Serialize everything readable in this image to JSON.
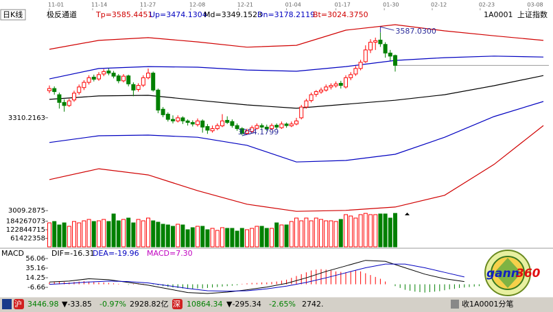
{
  "chart_data": {
    "type": "candlestick",
    "title": "日K线",
    "indicator": "极反通道",
    "indicator_values": [
      {
        "text": "Tp=3585.4451",
        "color": "#d00000"
      },
      {
        "text": "Up=3474.1304",
        "color": "#0000c0"
      },
      {
        "text": "Md=3349.1523",
        "color": "#000000"
      },
      {
        "text": "Dn=3178.2119",
        "color": "#0000c0"
      },
      {
        "text": "Bt=3024.3750",
        "color": "#d00000"
      }
    ],
    "symbol": "1A0001",
    "symbol_name": "上证指数",
    "xticks": [
      {
        "value": 0,
        "label": "11-01"
      },
      {
        "value": 8.75,
        "label": "11-14"
      },
      {
        "value": 18.6,
        "label": "11-27"
      },
      {
        "value": 28.6,
        "label": "12-08"
      },
      {
        "value": 38.3,
        "label": "12-21"
      },
      {
        "value": 48,
        "label": "01-04"
      },
      {
        "value": 58,
        "label": "01-17"
      },
      {
        "value": 67.8,
        "label": "01-30"
      },
      {
        "value": 77.5,
        "label": "02-12"
      },
      {
        "value": 87.2,
        "label": "02-23"
      },
      {
        "value": 97,
        "label": "03-08"
      }
    ],
    "ylim": [
      3003,
      3643
    ],
    "yticks": [
      3310.2163,
      3009.2875
    ],
    "up_color": "#ff0000",
    "down_color": "#008000",
    "ohlc": [
      [
        3398,
        3415,
        3390,
        3405
      ],
      [
        3405,
        3412,
        3385,
        3395
      ],
      [
        3385,
        3392,
        3340,
        3360
      ],
      [
        3360,
        3370,
        3330,
        3350
      ],
      [
        3350,
        3372,
        3345,
        3365
      ],
      [
        3368,
        3398,
        3362,
        3390
      ],
      [
        3392,
        3418,
        3385,
        3410
      ],
      [
        3408,
        3432,
        3400,
        3425
      ],
      [
        3425,
        3448,
        3418,
        3440
      ],
      [
        3442,
        3450,
        3428,
        3435
      ],
      [
        3436,
        3458,
        3430,
        3450
      ],
      [
        3452,
        3468,
        3445,
        3460
      ],
      [
        3462,
        3470,
        3448,
        3455
      ],
      [
        3455,
        3462,
        3438,
        3445
      ],
      [
        3446,
        3452,
        3422,
        3430
      ],
      [
        3430,
        3452,
        3425,
        3445
      ],
      [
        3446,
        3450,
        3412,
        3420
      ],
      [
        3418,
        3425,
        3380,
        3400
      ],
      [
        3402,
        3422,
        3395,
        3415
      ],
      [
        3416,
        3448,
        3410,
        3440
      ],
      [
        3440,
        3470,
        3435,
        3455
      ],
      [
        3455,
        3460,
        3395,
        3400
      ],
      [
        3400,
        3405,
        3325,
        3335
      ],
      [
        3338,
        3345,
        3312,
        3320
      ],
      [
        3322,
        3328,
        3298,
        3305
      ],
      [
        3305,
        3318,
        3292,
        3300
      ],
      [
        3300,
        3318,
        3295,
        3310
      ],
      [
        3310,
        3315,
        3290,
        3300
      ],
      [
        3300,
        3305,
        3285,
        3295
      ],
      [
        3295,
        3302,
        3282,
        3290
      ],
      [
        3288,
        3308,
        3282,
        3300
      ],
      [
        3300,
        3305,
        3262,
        3280
      ],
      [
        3282,
        3290,
        3258,
        3270
      ],
      [
        3268,
        3285,
        3262,
        3275
      ],
      [
        3275,
        3292,
        3270,
        3285
      ],
      [
        3284,
        3322,
        3280,
        3300
      ],
      [
        3302,
        3315,
        3290,
        3295
      ],
      [
        3298,
        3305,
        3278,
        3285
      ],
      [
        3285,
        3292,
        3268,
        3275
      ],
      [
        3275,
        3280,
        3254.1799,
        3260
      ],
      [
        3260,
        3275,
        3255,
        3268
      ],
      [
        3266,
        3285,
        3262,
        3278
      ],
      [
        3276,
        3292,
        3272,
        3285
      ],
      [
        3285,
        3292,
        3275,
        3280
      ],
      [
        3280,
        3288,
        3268,
        3275
      ],
      [
        3275,
        3292,
        3270,
        3285
      ],
      [
        3286,
        3292,
        3272,
        3280
      ],
      [
        3278,
        3298,
        3274,
        3290
      ],
      [
        3290,
        3295,
        3278,
        3285
      ],
      [
        3284,
        3298,
        3280,
        3290
      ],
      [
        3290,
        3310,
        3286,
        3300
      ],
      [
        3310,
        3352,
        3305,
        3345
      ],
      [
        3345,
        3372,
        3340,
        3365
      ],
      [
        3366,
        3392,
        3360,
        3385
      ],
      [
        3386,
        3400,
        3378,
        3395
      ],
      [
        3394,
        3408,
        3388,
        3400
      ],
      [
        3400,
        3418,
        3395,
        3410
      ],
      [
        3410,
        3422,
        3402,
        3415
      ],
      [
        3414,
        3428,
        3408,
        3420
      ],
      [
        3422,
        3430,
        3405,
        3415
      ],
      [
        3410,
        3448,
        3405,
        3440
      ],
      [
        3440,
        3458,
        3432,
        3450
      ],
      [
        3452,
        3478,
        3446,
        3470
      ],
      [
        3470,
        3498,
        3464,
        3490
      ],
      [
        3492,
        3545,
        3488,
        3530
      ],
      [
        3530,
        3565,
        3520,
        3555
      ],
      [
        3555,
        3570,
        3530,
        3560
      ],
      [
        3562,
        3587.03,
        3540,
        3550
      ],
      [
        3548,
        3555,
        3505,
        3520
      ],
      [
        3520,
        3530,
        3495,
        3510
      ],
      [
        3512,
        3515,
        3460,
        3480
      ]
    ],
    "max_label": {
      "value": 3587.03,
      "label": "3587.0300"
    },
    "min_label": {
      "value": 3254.1799,
      "label": "3254.1799"
    },
    "band_x": [
      0,
      10,
      20,
      30,
      40,
      50,
      60,
      70,
      80,
      90,
      100
    ],
    "bands": [
      {
        "color": "#d00000",
        "values": [
          3532,
          3561,
          3570,
          3556,
          3539,
          3545,
          3594,
          3612,
          3592,
          3576,
          3561
        ]
      },
      {
        "color": "#0000c0",
        "values": [
          3436,
          3470,
          3476,
          3474,
          3465,
          3461,
          3476,
          3496,
          3505,
          3510,
          3507
        ]
      },
      {
        "color": "#000000",
        "values": [
          3370,
          3381,
          3383,
          3367,
          3352,
          3341,
          3354,
          3367,
          3385,
          3414,
          3447
        ]
      },
      {
        "color": "#0000c0",
        "values": [
          3230,
          3252,
          3254,
          3247,
          3221,
          3167,
          3172,
          3192,
          3247,
          3314,
          3363
        ]
      },
      {
        "color": "#d00000",
        "values": [
          3110,
          3145,
          3125,
          3074,
          3030,
          3007,
          3010,
          3021,
          3059,
          3159,
          3285
        ]
      }
    ],
    "volume": {
      "ylim": [
        0,
        245700000
      ],
      "yticks": [
        184267073,
        122844715,
        61422358
      ],
      "values": [
        172000000,
        181800000,
        157200000,
        172000000,
        147400000,
        181800000,
        172000000,
        186700000,
        196600000,
        181800000,
        186700000,
        196600000,
        181800000,
        235900000,
        186700000,
        196600000,
        206400000,
        172000000,
        196600000,
        186700000,
        206400000,
        186700000,
        176900000,
        162200000,
        157200000,
        147400000,
        162200000,
        157200000,
        122900000,
        137600000,
        147400000,
        147400000,
        122900000,
        132700000,
        117900000,
        137600000,
        132700000,
        132700000,
        113000000,
        132700000,
        122900000,
        132700000,
        147400000,
        147400000,
        132700000,
        132700000,
        172000000,
        157200000,
        157200000,
        181800000,
        206400000,
        186700000,
        206400000,
        186700000,
        206400000,
        196600000,
        186700000,
        186700000,
        181800000,
        196600000,
        231000000,
        221100000,
        206400000,
        231000000,
        240000000,
        231000000,
        231000000,
        235900000,
        235900000,
        206400000,
        240000000
      ]
    },
    "macd": {
      "title": "MACD",
      "labels": [
        {
          "text": "DIF=-16.31",
          "color": "#000000"
        },
        {
          "text": "DEA=-19.96",
          "color": "#0000c0"
        },
        {
          "text": "MACD=7.30",
          "color": "#c000c0"
        }
      ],
      "ylim": [
        -26,
        69.5
      ],
      "yticks": [
        56.06,
        35.16,
        14.25,
        -6.66
      ],
      "bars": [
        4,
        5,
        6,
        5,
        4,
        5,
        6,
        7,
        6,
        5,
        4,
        4,
        3,
        2,
        1,
        0,
        -1,
        1,
        2,
        1,
        0,
        -1,
        -2,
        -4,
        -6,
        -7,
        -8,
        -9,
        -10,
        -10,
        -9,
        -9,
        -8,
        -7,
        -6,
        -5,
        -4,
        -3,
        -2,
        1,
        2,
        3,
        3,
        4,
        4,
        5,
        6,
        8,
        10,
        14,
        18,
        22,
        26,
        30,
        32,
        33,
        32,
        30,
        28,
        27,
        26,
        28,
        30,
        28,
        24,
        20,
        16,
        12,
        6,
        0,
        -4,
        -8,
        -12,
        -14,
        -16,
        -17,
        -18,
        -17,
        -16,
        -15,
        -13,
        -11,
        -10,
        -8,
        -7,
        -6,
        -5,
        -4
      ],
      "line_x": [
        0,
        4,
        8,
        12,
        16,
        20,
        24,
        28,
        32,
        36,
        40,
        44,
        48,
        52,
        56,
        60,
        64,
        68,
        72,
        76,
        80,
        84
      ],
      "dif": {
        "color": "#000000",
        "values": [
          5,
          7,
          12,
          10,
          4,
          -2,
          -10,
          -18,
          -20,
          -17,
          -12,
          -6,
          2,
          14,
          28,
          40,
          52,
          50,
          36,
          22,
          12,
          6
        ]
      },
      "dea": {
        "color": "#0000c0",
        "values": [
          0,
          2,
          5,
          7,
          6,
          3,
          -3,
          -9,
          -14,
          -15,
          -14,
          -10,
          -4,
          4,
          14,
          25,
          36,
          44,
          44,
          36,
          26,
          16
        ]
      }
    }
  },
  "logo": {
    "text": "gann",
    "number": "360"
  },
  "status_bar": {
    "sh_icon": "沪",
    "sh_index": "3446.98",
    "sh_change": "▼-33.85",
    "sh_pct": "-0.97%",
    "sh_amount": "2928.82亿",
    "sz_icon": "深",
    "sz_index": "10864.34",
    "sz_change": "▼-295.34",
    "sz_pct": "-2.65%",
    "sz_amount": "2742.",
    "right": "收1A0001分笔"
  }
}
